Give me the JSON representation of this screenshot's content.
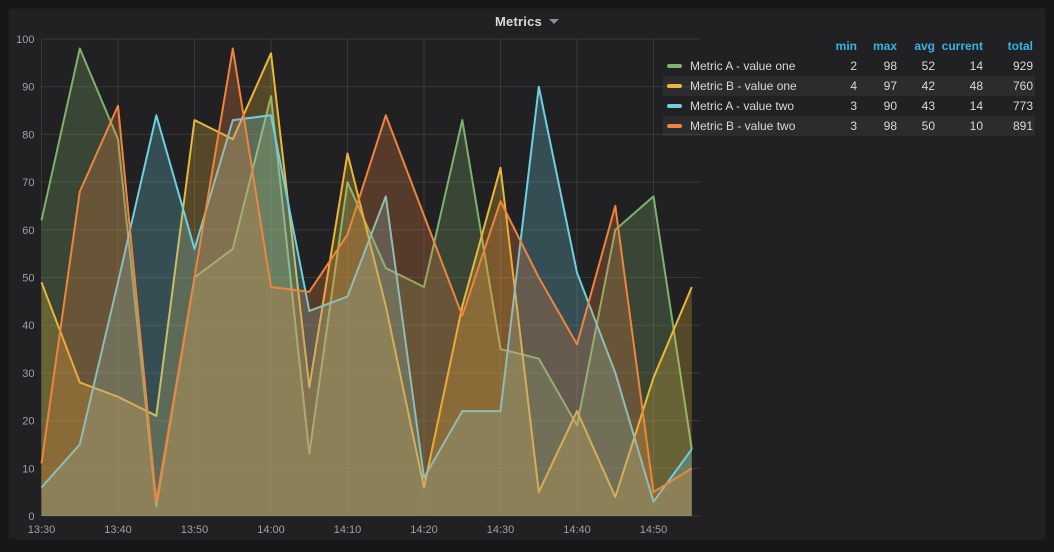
{
  "panel": {
    "title": "Metrics"
  },
  "colors": {
    "page_bg": "#161719",
    "panel_bg": "#212124",
    "grid": "rgba(255,255,255,0.10)",
    "tick_text": "#9da0a6",
    "legend_header": "#33b5e5",
    "text": "#d8d9da"
  },
  "chart_data": {
    "type": "line",
    "x": [
      "13:30",
      "13:35",
      "13:40",
      "13:45",
      "13:50",
      "13:55",
      "14:00",
      "14:05",
      "14:10",
      "14:15",
      "14:20",
      "14:25",
      "14:30",
      "14:35",
      "14:40",
      "14:45",
      "14:50",
      "14:55"
    ],
    "x_tick_labels": [
      "13:30",
      "13:40",
      "13:50",
      "14:00",
      "14:10",
      "14:20",
      "14:30",
      "14:40",
      "14:50"
    ],
    "y_ticks": [
      0,
      10,
      20,
      30,
      40,
      50,
      60,
      70,
      80,
      90,
      100
    ],
    "ylim": [
      0,
      100
    ],
    "grid": true,
    "fill_opacity": 0.26,
    "legend_position": "right-table",
    "series": [
      {
        "name": "Metric A - value one",
        "color": "#7EB26D",
        "values": [
          62,
          98,
          79,
          2,
          50,
          56,
          88,
          13,
          70,
          52,
          48,
          83,
          35,
          33,
          19,
          60,
          67,
          14
        ]
      },
      {
        "name": "Metric B - value one",
        "color": "#EAB839",
        "values": [
          49,
          28,
          25,
          21,
          83,
          79,
          97,
          27,
          76,
          44,
          6,
          44,
          73,
          5,
          22,
          4,
          29,
          48
        ]
      },
      {
        "name": "Metric A - value two",
        "color": "#6ED0E0",
        "values": [
          6,
          15,
          49,
          84,
          56,
          83,
          84,
          43,
          46,
          67,
          8,
          22,
          22,
          90,
          51,
          30,
          3,
          14
        ]
      },
      {
        "name": "Metric B - value two",
        "color": "#EF843C",
        "values": [
          11,
          68,
          86,
          3,
          50,
          98,
          48,
          47,
          59,
          84,
          63,
          42,
          66,
          50,
          36,
          65,
          5,
          10
        ]
      }
    ]
  },
  "legend": {
    "columns": [
      "min",
      "max",
      "avg",
      "current",
      "total"
    ],
    "rows": [
      {
        "label": "Metric A - value one",
        "color": "#7EB26D",
        "min": 2,
        "max": 98,
        "avg": 52,
        "current": 14,
        "total": 929
      },
      {
        "label": "Metric B - value one",
        "color": "#EAB839",
        "min": 4,
        "max": 97,
        "avg": 42,
        "current": 48,
        "total": 760
      },
      {
        "label": "Metric A - value two",
        "color": "#6ED0E0",
        "min": 3,
        "max": 90,
        "avg": 43,
        "current": 14,
        "total": 773
      },
      {
        "label": "Metric B - value two",
        "color": "#EF843C",
        "min": 3,
        "max": 98,
        "avg": 50,
        "current": 10,
        "total": 891
      }
    ]
  }
}
